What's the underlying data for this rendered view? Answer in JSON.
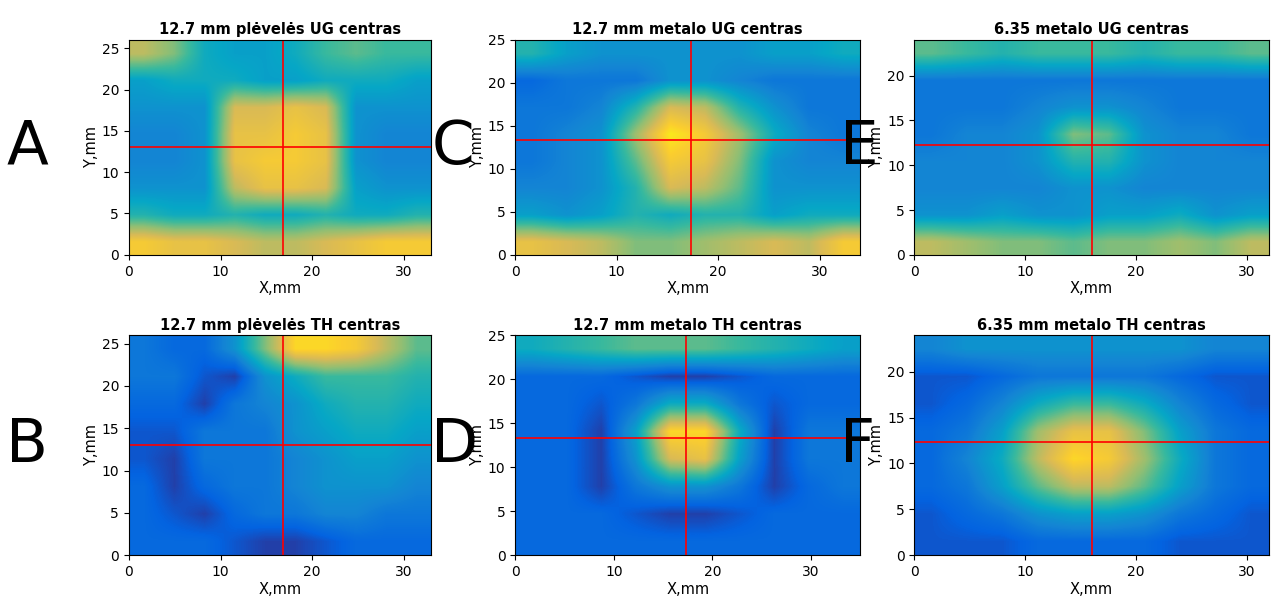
{
  "chart_data": [
    {
      "type": "heatmap",
      "panel": "A",
      "title": "12.7 mm plėvelės UG centras",
      "x_label": "X,mm",
      "y_label": "Y,mm",
      "xlim": [
        0,
        33
      ],
      "ylim": [
        0,
        26
      ],
      "xticks": [
        0,
        10,
        20,
        30
      ],
      "yticks": [
        0,
        5,
        10,
        15,
        20,
        25
      ],
      "crosshair": {
        "x": 16.8,
        "y": 13
      },
      "color": "#ff0000",
      "cells_range": [
        0,
        1
      ],
      "cells": [
        [
          0.85,
          0.8,
          0.8,
          0.75,
          0.7,
          0.7,
          0.75,
          0.8,
          0.85,
          0.85
        ],
        [
          0.45,
          0.4,
          0.4,
          0.45,
          0.4,
          0.4,
          0.45,
          0.4,
          0.4,
          0.45
        ],
        [
          0.3,
          0.3,
          0.3,
          0.7,
          0.8,
          0.8,
          0.75,
          0.35,
          0.3,
          0.3
        ],
        [
          0.25,
          0.25,
          0.3,
          0.8,
          0.85,
          0.85,
          0.8,
          0.3,
          0.25,
          0.25
        ],
        [
          0.25,
          0.25,
          0.3,
          0.8,
          0.8,
          0.85,
          0.8,
          0.3,
          0.25,
          0.25
        ],
        [
          0.3,
          0.3,
          0.3,
          0.75,
          0.75,
          0.8,
          0.75,
          0.3,
          0.3,
          0.3
        ],
        [
          0.35,
          0.4,
          0.4,
          0.4,
          0.35,
          0.35,
          0.4,
          0.4,
          0.4,
          0.35
        ],
        [
          0.7,
          0.6,
          0.4,
          0.35,
          0.35,
          0.4,
          0.5,
          0.55,
          0.5,
          0.5
        ]
      ]
    },
    {
      "type": "heatmap",
      "panel": "B",
      "title": "12.7 mm plėvelės TH centras",
      "x_label": "X,mm",
      "y_label": "Y,mm",
      "xlim": [
        0,
        33
      ],
      "ylim": [
        0,
        26
      ],
      "xticks": [
        0,
        10,
        20,
        30
      ],
      "yticks": [
        0,
        5,
        10,
        15,
        20,
        25
      ],
      "crosshair": {
        "x": 16.8,
        "y": 13
      },
      "color": "#ff0000",
      "cells_range": [
        0,
        1
      ],
      "cells": [
        [
          0.15,
          0.15,
          0.15,
          0.1,
          0.05,
          0.05,
          0.1,
          0.15,
          0.15,
          0.15
        ],
        [
          0.15,
          0.1,
          0.05,
          0.15,
          0.2,
          0.2,
          0.25,
          0.25,
          0.2,
          0.2
        ],
        [
          0.15,
          0.05,
          0.15,
          0.2,
          0.2,
          0.25,
          0.3,
          0.3,
          0.3,
          0.25
        ],
        [
          0.1,
          0.05,
          0.2,
          0.2,
          0.2,
          0.25,
          0.3,
          0.35,
          0.35,
          0.3
        ],
        [
          0.1,
          0.1,
          0.2,
          0.2,
          0.2,
          0.3,
          0.35,
          0.4,
          0.4,
          0.35
        ],
        [
          0.15,
          0.15,
          0.05,
          0.2,
          0.25,
          0.3,
          0.4,
          0.45,
          0.45,
          0.4
        ],
        [
          0.2,
          0.2,
          0.1,
          0.05,
          0.3,
          0.4,
          0.5,
          0.5,
          0.5,
          0.45
        ],
        [
          0.2,
          0.15,
          0.15,
          0.3,
          0.6,
          0.9,
          0.9,
          0.85,
          0.7,
          0.55
        ]
      ]
    },
    {
      "type": "heatmap",
      "panel": "C",
      "title": "12.7 mm metalo UG centras",
      "x_label": "X,mm",
      "y_label": "Y,mm",
      "xlim": [
        0,
        34
      ],
      "ylim": [
        0,
        25
      ],
      "xticks": [
        0,
        10,
        20,
        30
      ],
      "yticks": [
        0,
        5,
        10,
        15,
        20,
        25
      ],
      "crosshair": {
        "x": 17.3,
        "y": 13.3
      },
      "color": "#ff0000",
      "cells_range": [
        0,
        1
      ],
      "cells": [
        [
          0.8,
          0.75,
          0.7,
          0.6,
          0.6,
          0.65,
          0.7,
          0.75,
          0.7,
          0.85
        ],
        [
          0.35,
          0.3,
          0.35,
          0.45,
          0.4,
          0.45,
          0.45,
          0.35,
          0.4,
          0.4
        ],
        [
          0.25,
          0.25,
          0.3,
          0.45,
          0.75,
          0.7,
          0.55,
          0.3,
          0.3,
          0.3
        ],
        [
          0.2,
          0.25,
          0.3,
          0.55,
          0.85,
          0.8,
          0.6,
          0.3,
          0.25,
          0.25
        ],
        [
          0.2,
          0.25,
          0.3,
          0.65,
          0.95,
          0.85,
          0.65,
          0.4,
          0.25,
          0.2
        ],
        [
          0.2,
          0.2,
          0.25,
          0.45,
          0.75,
          0.7,
          0.45,
          0.3,
          0.2,
          0.2
        ],
        [
          0.15,
          0.2,
          0.2,
          0.2,
          0.3,
          0.3,
          0.25,
          0.2,
          0.2,
          0.2
        ],
        [
          0.45,
          0.35,
          0.3,
          0.3,
          0.3,
          0.3,
          0.3,
          0.35,
          0.35,
          0.4
        ]
      ]
    },
    {
      "type": "heatmap",
      "panel": "D",
      "title": "12.7 mm metalo TH centras",
      "x_label": "X,mm",
      "y_label": "Y,mm",
      "xlim": [
        0,
        35
      ],
      "ylim": [
        0,
        25
      ],
      "xticks": [
        0,
        10,
        20,
        30
      ],
      "yticks": [
        0,
        5,
        10,
        15,
        20,
        25
      ],
      "crosshair": {
        "x": 17.3,
        "y": 13.3
      },
      "color": "#ff0000",
      "cells_range": [
        0,
        1
      ],
      "cells": [
        [
          0.15,
          0.15,
          0.15,
          0.15,
          0.15,
          0.15,
          0.15,
          0.15,
          0.15,
          0.15
        ],
        [
          0.15,
          0.15,
          0.15,
          0.1,
          0.05,
          0.05,
          0.1,
          0.15,
          0.15,
          0.15
        ],
        [
          0.15,
          0.15,
          0.05,
          0.2,
          0.3,
          0.3,
          0.2,
          0.05,
          0.15,
          0.2
        ],
        [
          0.15,
          0.15,
          0.05,
          0.3,
          0.75,
          0.8,
          0.35,
          0.05,
          0.2,
          0.2
        ],
        [
          0.15,
          0.15,
          0.05,
          0.35,
          0.9,
          0.9,
          0.4,
          0.05,
          0.2,
          0.2
        ],
        [
          0.15,
          0.15,
          0.1,
          0.2,
          0.4,
          0.4,
          0.2,
          0.1,
          0.15,
          0.15
        ],
        [
          0.15,
          0.15,
          0.15,
          0.1,
          0.05,
          0.05,
          0.1,
          0.15,
          0.15,
          0.15
        ],
        [
          0.4,
          0.45,
          0.5,
          0.55,
          0.55,
          0.55,
          0.5,
          0.45,
          0.4,
          0.35
        ]
      ]
    },
    {
      "type": "heatmap",
      "panel": "E",
      "title": "6.35 metalo UG centras",
      "x_label": "X,mm",
      "y_label": "Y,mm",
      "xlim": [
        0,
        32
      ],
      "ylim": [
        0,
        24
      ],
      "xticks": [
        0,
        10,
        20,
        30
      ],
      "yticks": [
        0,
        5,
        10,
        15,
        20
      ],
      "crosshair": {
        "x": 16,
        "y": 12.3
      },
      "color": "#ff0000",
      "cells_range": [
        0,
        1
      ],
      "cells": [
        [
          0.7,
          0.65,
          0.6,
          0.6,
          0.55,
          0.6,
          0.6,
          0.65,
          0.6,
          0.7
        ],
        [
          0.3,
          0.3,
          0.35,
          0.3,
          0.3,
          0.35,
          0.35,
          0.4,
          0.3,
          0.35
        ],
        [
          0.25,
          0.25,
          0.25,
          0.25,
          0.3,
          0.3,
          0.25,
          0.25,
          0.25,
          0.25
        ],
        [
          0.25,
          0.25,
          0.25,
          0.3,
          0.45,
          0.45,
          0.3,
          0.25,
          0.25,
          0.25
        ],
        [
          0.2,
          0.25,
          0.25,
          0.3,
          0.6,
          0.55,
          0.3,
          0.25,
          0.25,
          0.2
        ],
        [
          0.2,
          0.2,
          0.2,
          0.25,
          0.3,
          0.3,
          0.25,
          0.2,
          0.2,
          0.2
        ],
        [
          0.2,
          0.2,
          0.2,
          0.2,
          0.2,
          0.2,
          0.2,
          0.2,
          0.2,
          0.2
        ],
        [
          0.55,
          0.5,
          0.45,
          0.5,
          0.5,
          0.5,
          0.45,
          0.5,
          0.5,
          0.55
        ]
      ]
    },
    {
      "type": "heatmap",
      "panel": "F",
      "title": "6.35 mm metalo TH centras",
      "x_label": "X,mm",
      "y_label": "Y,mm",
      "xlim": [
        0,
        32
      ],
      "ylim": [
        0,
        24
      ],
      "xticks": [
        0,
        10,
        20,
        30
      ],
      "yticks": [
        0,
        5,
        10,
        15,
        20
      ],
      "crosshair": {
        "x": 16,
        "y": 12.3
      },
      "color": "#ff0000",
      "cells_range": [
        0,
        1
      ],
      "cells": [
        [
          0.1,
          0.1,
          0.1,
          0.15,
          0.15,
          0.15,
          0.15,
          0.1,
          0.1,
          0.1
        ],
        [
          0.1,
          0.15,
          0.2,
          0.3,
          0.35,
          0.35,
          0.3,
          0.2,
          0.15,
          0.1
        ],
        [
          0.15,
          0.2,
          0.35,
          0.55,
          0.7,
          0.7,
          0.55,
          0.35,
          0.2,
          0.15
        ],
        [
          0.15,
          0.25,
          0.4,
          0.7,
          0.9,
          0.85,
          0.65,
          0.4,
          0.2,
          0.15
        ],
        [
          0.15,
          0.2,
          0.35,
          0.65,
          0.8,
          0.8,
          0.6,
          0.35,
          0.2,
          0.15
        ],
        [
          0.1,
          0.15,
          0.25,
          0.4,
          0.5,
          0.5,
          0.4,
          0.25,
          0.15,
          0.1
        ],
        [
          0.1,
          0.1,
          0.15,
          0.2,
          0.2,
          0.2,
          0.2,
          0.15,
          0.1,
          0.1
        ],
        [
          0.25,
          0.3,
          0.3,
          0.3,
          0.3,
          0.3,
          0.3,
          0.3,
          0.25,
          0.25
        ]
      ]
    }
  ]
}
